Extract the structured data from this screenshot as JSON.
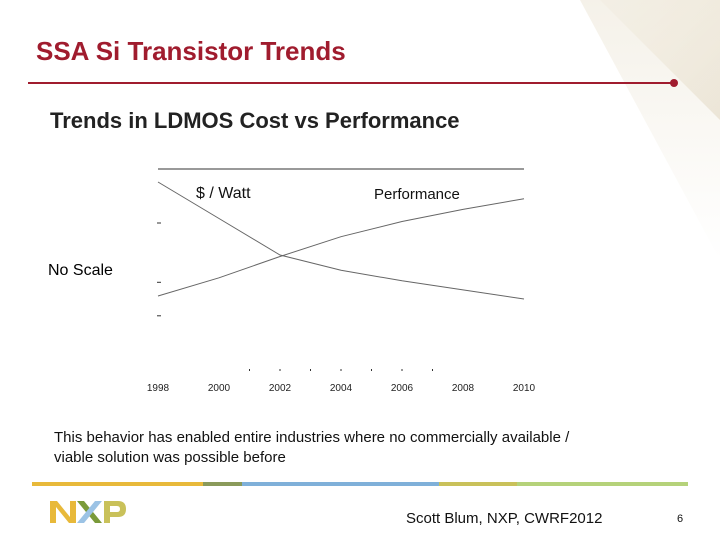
{
  "slide": {
    "title": "SSA Si Transistor Trends",
    "caption": "This behavior has enabled entire industries where no commercially available / viable solution was possible before",
    "footer": "Scott Blum, NXP, CWRF2012",
    "page_number": "6",
    "logo_text": "NXP",
    "colors": {
      "title": "#a01c2e",
      "footer_bar": [
        "#e8b93a",
        "#8a9a5b",
        "#7fb0d9",
        "#c9c15a",
        "#b5d27a"
      ]
    }
  },
  "chart_data": {
    "type": "line",
    "title": "Trends in LDMOS Cost vs Performance",
    "note": "No Scale",
    "x": [
      1998,
      2000,
      2002,
      2004,
      2006,
      2008,
      2010
    ],
    "xlabel": "",
    "ylabel": "",
    "y_scale": "none",
    "grid": false,
    "series": [
      {
        "name": "$ / Watt",
        "values": [
          100,
          76,
          52,
          42,
          35,
          29,
          23
        ]
      },
      {
        "name": "Performance",
        "values": [
          25,
          37,
          51,
          64,
          74,
          82,
          89
        ]
      }
    ]
  }
}
